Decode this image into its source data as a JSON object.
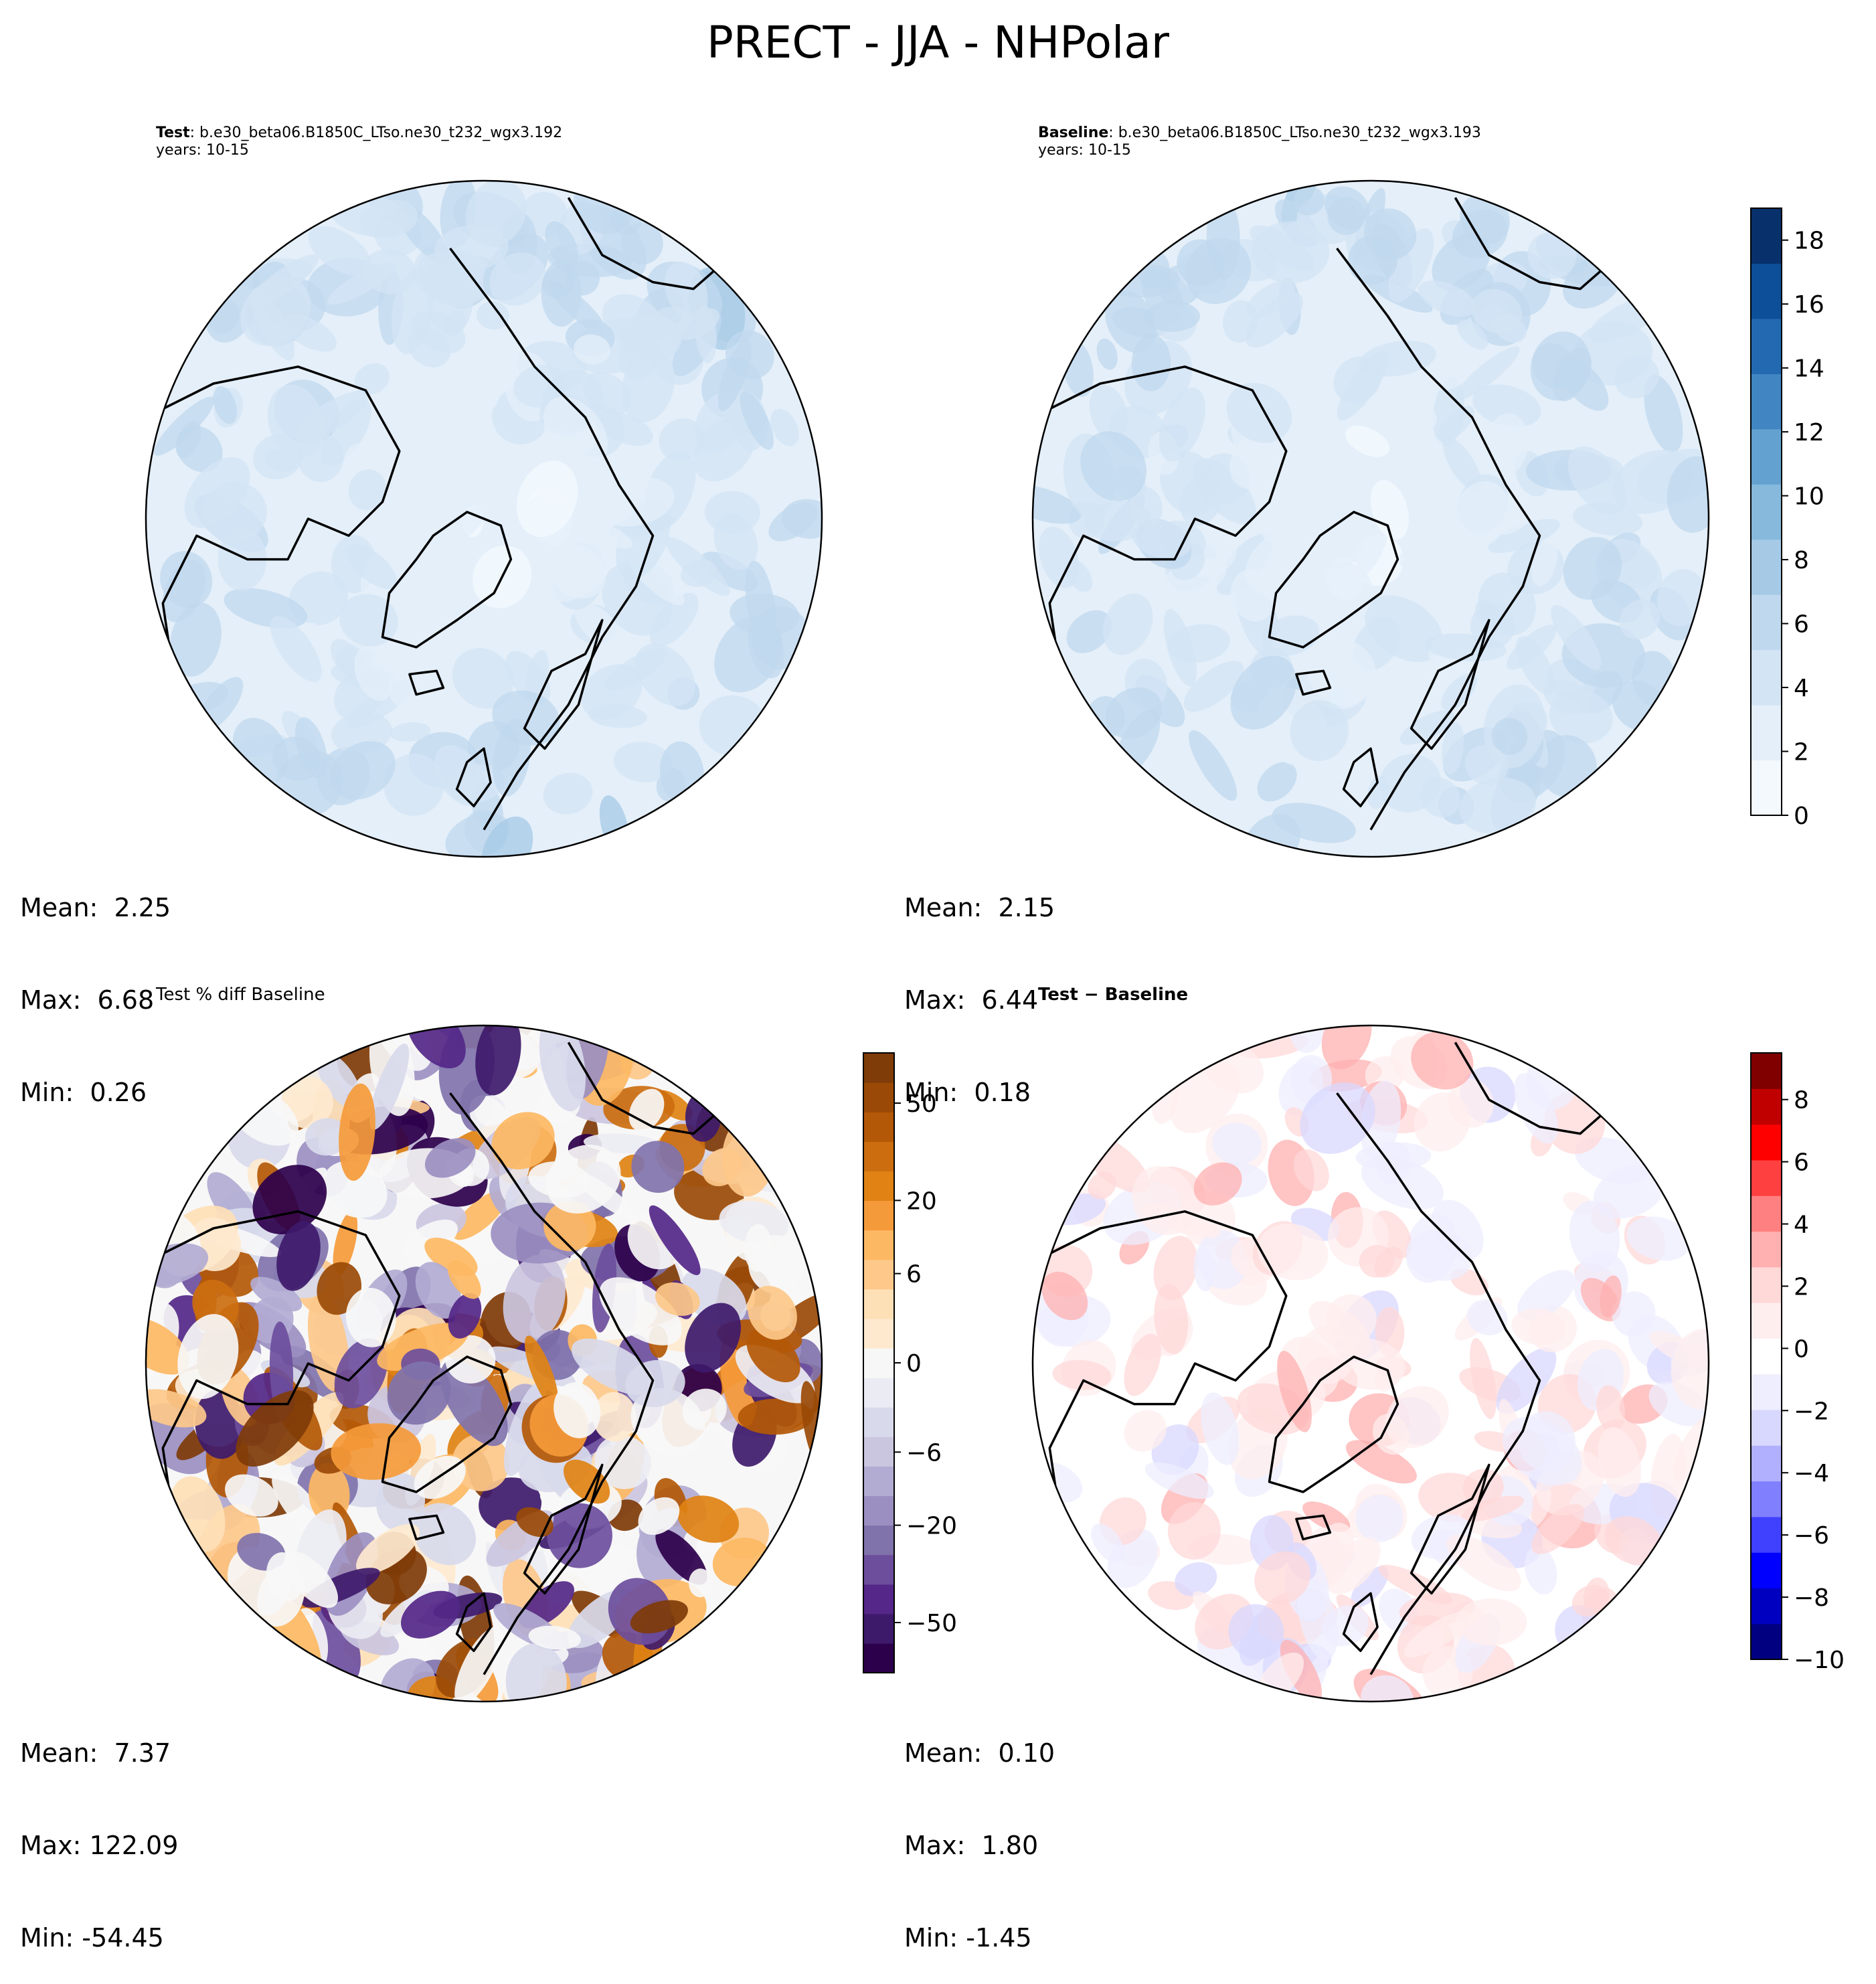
{
  "figure_title": "PRECT - JJA - NHPolar",
  "colors": {
    "ocean_blue_bg": "#e3eef9",
    "coast": "#000000",
    "blues": [
      "#f4f9fe",
      "#e4eff9",
      "#d3e4f4",
      "#c0d8ee",
      "#a6cae6",
      "#86b9dc",
      "#63a1d0",
      "#4186c2",
      "#2369b1",
      "#0d4f98",
      "#08306b"
    ],
    "puor": [
      "#2d004b",
      "#3e1a6b",
      "#542788",
      "#6c4e9d",
      "#8073ac",
      "#9b8fc1",
      "#b2abd2",
      "#cbc6e0",
      "#d8daeb",
      "#ebebf3",
      "#f7f7f7",
      "#fee9cf",
      "#fee0b6",
      "#fdc88a",
      "#fdb863",
      "#f59a3a",
      "#e08214",
      "#cc6e10",
      "#b35806",
      "#9a4a06",
      "#7f3b08"
    ],
    "bwr": [
      "#000080",
      "#0000c0",
      "#0000ff",
      "#4040ff",
      "#8080ff",
      "#b0b0ff",
      "#d8d8ff",
      "#eeeeff",
      "#ffffff",
      "#ffeeee",
      "#ffd8d8",
      "#ffb0b0",
      "#ff8080",
      "#ff4040",
      "#ff0000",
      "#c00000",
      "#800000"
    ]
  },
  "chart_data": [
    {
      "type": "heatmap",
      "panel": "test",
      "header_bold": "Test",
      "header_rest": ": b.e30_beta06.B1850C_LTso.ne30_t232_wgx3.192",
      "header_line2": "years: 10-15",
      "projection": "north polar stereographic",
      "stats": {
        "mean": "Mean:  2.25",
        "max": "Max:  6.68",
        "min": "Min:  0.26"
      }
    },
    {
      "type": "heatmap",
      "panel": "baseline",
      "header_bold": "Baseline",
      "header_rest": ": b.e30_beta06.B1850C_LTso.ne30_t232_wgx3.193",
      "header_line2": "years: 10-15",
      "projection": "north polar stereographic",
      "stats": {
        "mean": "Mean:  2.15",
        "max": "Max:  6.44",
        "min": "Min:  0.18"
      },
      "colorbar": {
        "range": [
          0,
          19
        ],
        "ticks": [
          0,
          2,
          4,
          6,
          8,
          10,
          12,
          14,
          16,
          18
        ],
        "tick_labels": [
          "0",
          "2",
          "4",
          "6",
          "8",
          "10",
          "12",
          "14",
          "16",
          "18"
        ],
        "cmap": "Blues"
      }
    },
    {
      "type": "heatmap",
      "panel": "pctdiff",
      "header": "Test % diff Baseline",
      "projection": "north polar stereographic",
      "stats": {
        "mean": "Mean:  7.37",
        "max": "Max: 122.09",
        "min": "Min: -54.45"
      },
      "colorbar": {
        "levels": 21,
        "ticks": [
          -50,
          -20,
          -6,
          0,
          6,
          20,
          50
        ],
        "tick_labels": [
          "−50",
          "−20",
          "−6",
          "0",
          "6",
          "20",
          "50"
        ],
        "cmap": "PuOr_r"
      }
    },
    {
      "type": "heatmap",
      "panel": "diff",
      "header_bold": "Test − Baseline",
      "projection": "north polar stereographic",
      "stats": {
        "mean": "Mean:  0.10",
        "max": "Max:  1.80",
        "min": "Min: -1.45"
      },
      "colorbar": {
        "range": [
          -10,
          9.5
        ],
        "ticks": [
          -10,
          -8,
          -6,
          -4,
          -2,
          0,
          2,
          4,
          6,
          8
        ],
        "tick_labels": [
          "−10",
          "−8",
          "−6",
          "−4",
          "−2",
          "0",
          "2",
          "4",
          "6",
          "8"
        ],
        "cmap": "bwr"
      }
    }
  ]
}
